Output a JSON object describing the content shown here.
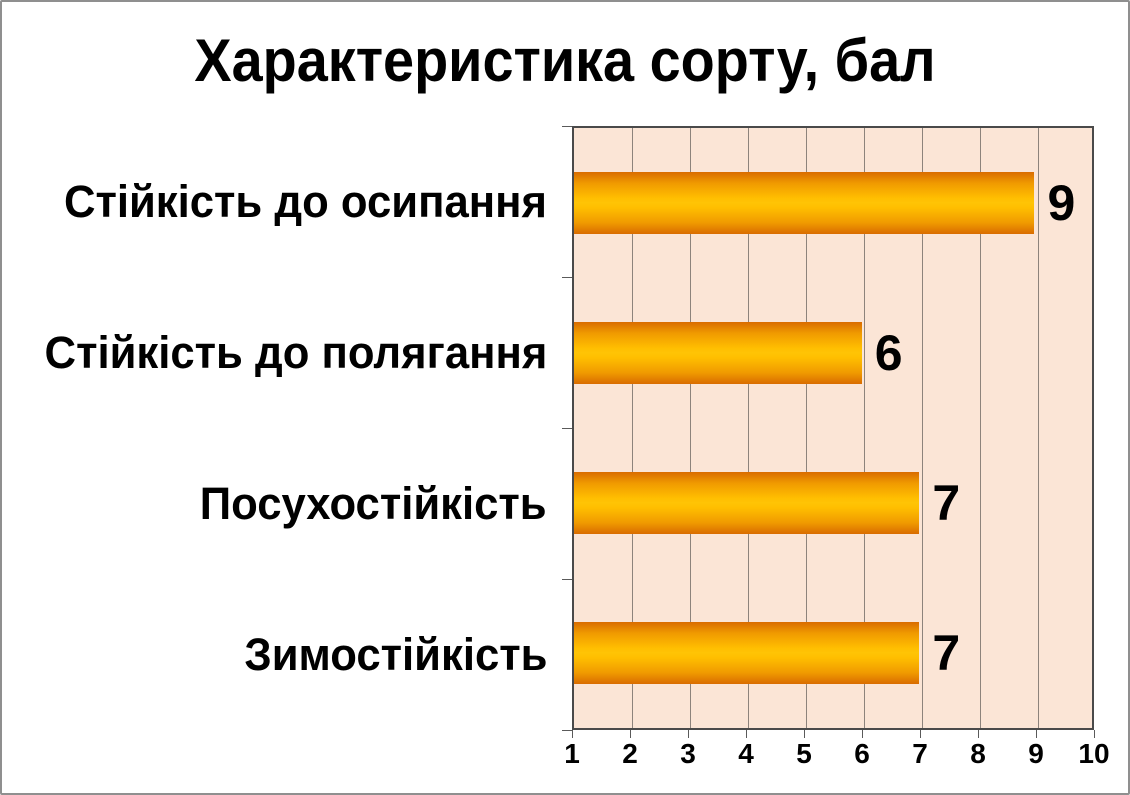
{
  "chart_data": {
    "type": "bar",
    "orientation": "horizontal",
    "title": "Характеристика сорту, бал",
    "categories": [
      "Стійкість до осипання",
      "Стійкість до полягання",
      "Посухостійкість",
      "Зимостійкість"
    ],
    "values": [
      9,
      6,
      7,
      7
    ],
    "value_labels": [
      "9",
      "6",
      "7",
      "7"
    ],
    "x_ticks": [
      "1",
      "2",
      "3",
      "4",
      "5",
      "6",
      "7",
      "8",
      "9",
      "10"
    ],
    "xlim": [
      1,
      10
    ],
    "grid": true,
    "legend": false,
    "xlabel": "",
    "ylabel": "",
    "colors": {
      "bar_edge": "#d96c00",
      "bar_center": "#ffc405",
      "plot_background": "#fbe5d6",
      "gridline": "#8d837c",
      "plot_border": "#4a4a4a",
      "frame_border": "#8f8f8f",
      "text": "#000000"
    }
  }
}
